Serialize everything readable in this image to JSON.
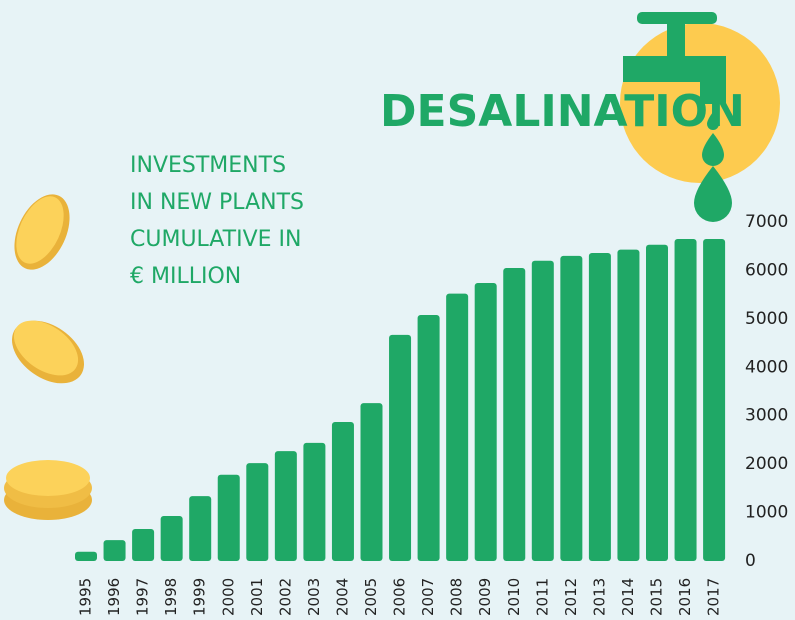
{
  "chart_data": {
    "type": "bar",
    "title": "DESALINATION",
    "subtitle": [
      "INVESTMENTS",
      "IN NEW PLANTS",
      "CUMULATIVE IN",
      "€ MILLION"
    ],
    "categories": [
      "1995",
      "1996",
      "1997",
      "1998",
      "1999",
      "2000",
      "2001",
      "2002",
      "2003",
      "2004",
      "2005",
      "2006",
      "2007",
      "2008",
      "2009",
      "2010",
      "2011",
      "2012",
      "2013",
      "2014",
      "2015",
      "2016",
      "2017"
    ],
    "values": [
      190,
      430,
      660,
      930,
      1340,
      1780,
      2020,
      2270,
      2440,
      2870,
      3260,
      4670,
      5080,
      5520,
      5740,
      6050,
      6200,
      6300,
      6360,
      6430,
      6530,
      6650,
      6650
    ],
    "color": "#1fa866",
    "ylim": [
      0,
      7000
    ],
    "yticks": [
      0,
      1000,
      2000,
      3000,
      4000,
      5000,
      6000,
      7000
    ],
    "grid": false
  }
}
